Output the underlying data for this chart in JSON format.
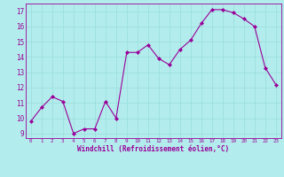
{
  "x": [
    0,
    1,
    2,
    3,
    4,
    5,
    6,
    7,
    8,
    9,
    10,
    11,
    12,
    13,
    14,
    15,
    16,
    17,
    18,
    19,
    20,
    21,
    22,
    23
  ],
  "y": [
    9.8,
    10.7,
    11.4,
    11.1,
    9.0,
    9.3,
    9.3,
    11.1,
    10.0,
    14.3,
    14.3,
    14.8,
    13.9,
    13.5,
    14.5,
    15.1,
    16.2,
    17.1,
    17.1,
    16.9,
    16.5,
    16.0,
    13.3,
    12.2
  ],
  "line_color": "#990099",
  "marker": "D",
  "marker_size": 2.0,
  "bg_color": "#b3ecec",
  "grid_color": "#99dddd",
  "xlabel": "Windchill (Refroidissement éolien,°C)",
  "xlabel_color": "#990099",
  "tick_color": "#990099",
  "spine_color": "#990099",
  "ylim": [
    8.7,
    17.5
  ],
  "yticks": [
    9,
    10,
    11,
    12,
    13,
    14,
    15,
    16,
    17
  ],
  "xlim": [
    -0.5,
    23.5
  ],
  "xticks": [
    0,
    1,
    2,
    3,
    4,
    5,
    6,
    7,
    8,
    9,
    10,
    11,
    12,
    13,
    14,
    15,
    16,
    17,
    18,
    19,
    20,
    21,
    22,
    23
  ],
  "xlabel_fontsize": 5.5,
  "ytick_fontsize": 5.5,
  "xtick_fontsize": 4.2
}
